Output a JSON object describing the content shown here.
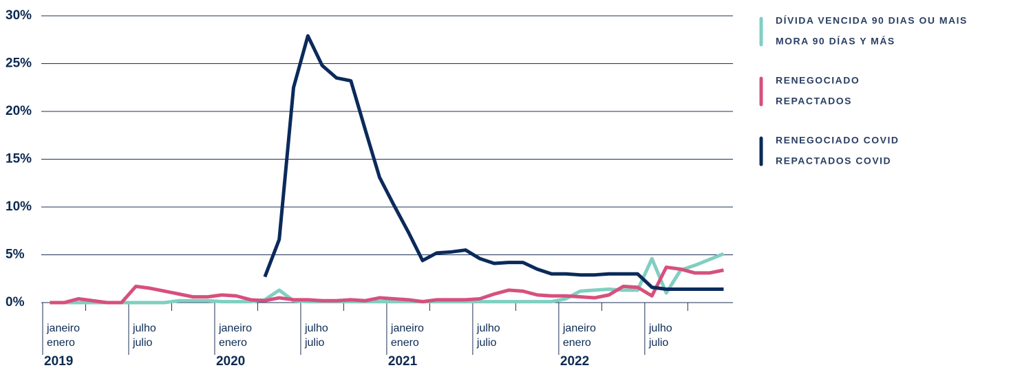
{
  "chart_data": {
    "type": "line",
    "categories": [
      {
        "pt": "janeiro",
        "es": "enero",
        "year": "2019"
      },
      null,
      null,
      null,
      null,
      null,
      {
        "pt": "julho",
        "es": "julio"
      },
      null,
      null,
      null,
      null,
      null,
      {
        "pt": "janeiro",
        "es": "enero",
        "year": "2020"
      },
      null,
      null,
      null,
      null,
      null,
      {
        "pt": "julho",
        "es": "julio"
      },
      null,
      null,
      null,
      null,
      null,
      {
        "pt": "janeiro",
        "es": "enero",
        "year": "2021"
      },
      null,
      null,
      null,
      null,
      null,
      {
        "pt": "julho",
        "es": "julio"
      },
      null,
      null,
      null,
      null,
      null,
      {
        "pt": "janeiro",
        "es": "enero",
        "year": "2022"
      },
      null,
      null,
      null,
      null,
      null,
      {
        "pt": "julho",
        "es": "julio"
      },
      null,
      null,
      null,
      null,
      null
    ],
    "series": [
      {
        "name": [
          "DÍVIDA VENCIDA 90 DIAS OU MAIS",
          "MORA 90 DÍAS Y MÁS"
        ],
        "color": "#80cfc2",
        "values": [
          0,
          0,
          0,
          0,
          0,
          0,
          0,
          0,
          0,
          0.2,
          0.2,
          0.2,
          0.1,
          0.1,
          0.1,
          0.3,
          1.3,
          0.2,
          0.1,
          0.1,
          0.1,
          0.1,
          0.1,
          0.1,
          0.1,
          0.1,
          0.1,
          0.1,
          0.1,
          0.1,
          0.1,
          0.1,
          0.1,
          0.1,
          0.1,
          0.1,
          0.4,
          1.2,
          1.3,
          1.4,
          1.3,
          1.3,
          4.6,
          1.0,
          3.4,
          3.9,
          4.5,
          5.1
        ]
      },
      {
        "name": [
          "RENEGOCIADO",
          "REPACTADOS"
        ],
        "color": "#d6507d",
        "values": [
          0,
          0,
          0.4,
          0.2,
          0,
          0,
          1.7,
          1.5,
          1.2,
          0.9,
          0.6,
          0.6,
          0.8,
          0.7,
          0.3,
          0.2,
          0.5,
          0.3,
          0.3,
          0.2,
          0.2,
          0.3,
          0.2,
          0.5,
          0.4,
          0.3,
          0.1,
          0.3,
          0.3,
          0.3,
          0.4,
          0.9,
          1.3,
          1.2,
          0.8,
          0.7,
          0.7,
          0.6,
          0.5,
          0.8,
          1.7,
          1.6,
          0.7,
          3.7,
          3.5,
          3.1,
          3.1,
          3.4
        ]
      },
      {
        "name": [
          "RENEGOCIADO COVID",
          "REPACTADOS COVID"
        ],
        "color": "#0b2a5b",
        "values": [
          null,
          null,
          null,
          null,
          null,
          null,
          null,
          null,
          null,
          null,
          null,
          null,
          null,
          null,
          null,
          2.7,
          6.6,
          22.5,
          27.9,
          24.8,
          23.5,
          23.2,
          18.1,
          13.1,
          10.2,
          7.4,
          4.4,
          5.2,
          5.3,
          5.5,
          4.6,
          4.1,
          4.2,
          4.2,
          3.5,
          3.0,
          3.0,
          2.9,
          2.9,
          3.0,
          3.0,
          3.0,
          1.6,
          1.4,
          1.4,
          1.4,
          1.4,
          1.4
        ]
      }
    ],
    "ylim": [
      0,
      30
    ],
    "yticks": [
      {
        "value": 0,
        "label": "0%"
      },
      {
        "value": 5,
        "label": "5%"
      },
      {
        "value": 10,
        "label": "10%"
      },
      {
        "value": 15,
        "label": "15%"
      },
      {
        "value": 20,
        "label": "20%"
      },
      {
        "value": 25,
        "label": "25%"
      },
      {
        "value": 30,
        "label": "30%"
      }
    ],
    "grid": true
  }
}
